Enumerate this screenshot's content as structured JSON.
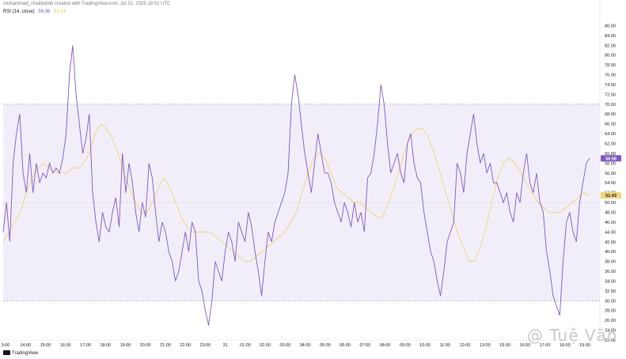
{
  "caption": "muhammad_chalidulloh created with TradingView.com, Jul 31, 2025 18:01 UTC",
  "indicator_label": "RSI (14, close)",
  "brand": "TradingView",
  "watermark": "@ Tuệ Văn",
  "colors": {
    "rsi": "#7e57c2",
    "ma": "#f0d67a",
    "band": "#7e57c2",
    "axis_text": "#131722"
  },
  "chart_data": {
    "type": "line",
    "y_range": [
      22,
      88
    ],
    "y_ticks": [
      "86.00",
      "84.00",
      "82.00",
      "80.00",
      "78.00",
      "76.00",
      "74.00",
      "72.00",
      "70.00",
      "68.00",
      "66.00",
      "64.00",
      "62.00",
      "60.00",
      "58.00",
      "56.00",
      "54.00",
      "52.00",
      "50.00",
      "48.00",
      "46.00",
      "44.00",
      "42.00",
      "40.00",
      "38.00",
      "36.00",
      "34.00",
      "32.00",
      "30.00",
      "28.00",
      "26.00",
      "24.00",
      "22.00"
    ],
    "band": {
      "upper": 70,
      "lower": 30,
      "middle": 50
    },
    "x_labels": [
      "3:00",
      "14:00",
      "15:00",
      "16:00",
      "17:00",
      "18:00",
      "19:00",
      "20:00",
      "21:00",
      "22:00",
      "23:00",
      "31",
      "01:00",
      "02:00",
      "03:00",
      "04:00",
      "05:00",
      "06:00",
      "07:00",
      "08:00",
      "09:00",
      "10:00",
      "11:00",
      "12:00",
      "13:00",
      "15:00",
      "16:00",
      "17:00",
      "18:00",
      "19:00"
    ],
    "series": [
      {
        "name": "RSI",
        "last_value": "58.98",
        "values": [
          44,
          50,
          42,
          58,
          64,
          68,
          56,
          52,
          60,
          52,
          58,
          54,
          56,
          55,
          58,
          56,
          57,
          56,
          59,
          64,
          76,
          82,
          72,
          66,
          60,
          63,
          68,
          52,
          46,
          42,
          48,
          45,
          44,
          48,
          51,
          45,
          60,
          52,
          58,
          54,
          48,
          44,
          50,
          47,
          58,
          55,
          48,
          42,
          46,
          44,
          40,
          38,
          34,
          36,
          40,
          44,
          40,
          46,
          44,
          34,
          32,
          28,
          25,
          30,
          38,
          36,
          34,
          40,
          44,
          42,
          38,
          46,
          44,
          42,
          48,
          45,
          40,
          36,
          31,
          38,
          44,
          42,
          46,
          48,
          50,
          52,
          56,
          70,
          76,
          72,
          66,
          60,
          56,
          52,
          58,
          64,
          60,
          56,
          56,
          54,
          50,
          48,
          46,
          50,
          48,
          45,
          50,
          46,
          48,
          44,
          55,
          56,
          60,
          66,
          74,
          70,
          62,
          56,
          58,
          60,
          56,
          54,
          62,
          64,
          58,
          55,
          54,
          48,
          44,
          40,
          38,
          34,
          31,
          36,
          42,
          44,
          46,
          58,
          56,
          52,
          60,
          64,
          68,
          62,
          58,
          60,
          56,
          58,
          54,
          54,
          52,
          50,
          52,
          48,
          46,
          52,
          50,
          56,
          60,
          54,
          52,
          56,
          50,
          48,
          40,
          36,
          31,
          29,
          27,
          38,
          46,
          48,
          44,
          42,
          50,
          54,
          58,
          58.98
        ]
      },
      {
        "name": "RSI MA",
        "last_value": "51.43",
        "values": [
          42,
          44,
          46,
          48,
          52,
          55,
          57,
          58,
          57,
          56,
          56,
          56,
          57,
          57,
          58,
          60,
          64,
          66,
          65,
          63,
          60,
          56,
          53,
          50,
          48,
          48,
          50,
          53,
          55,
          53,
          50,
          47,
          45,
          44,
          44,
          44,
          44,
          43,
          42,
          41,
          40,
          39,
          38,
          38,
          39,
          40,
          41,
          42,
          43,
          44,
          46,
          48,
          52,
          56,
          59,
          60,
          59,
          56,
          53,
          52,
          51,
          50,
          50,
          49,
          48,
          47,
          47,
          50,
          53,
          57,
          61,
          64,
          65,
          65,
          63,
          60,
          56,
          52,
          48,
          44,
          41,
          38,
          38,
          41,
          45,
          50,
          55,
          58,
          59,
          58,
          56,
          54,
          52,
          50,
          49,
          48,
          48,
          48,
          49,
          50,
          51,
          52,
          51.43
        ]
      }
    ]
  }
}
